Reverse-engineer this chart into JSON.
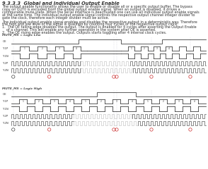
{
  "title": "9.3.3.3  Global and Individual Output Enable",
  "bg_color": "#ffffff",
  "signal_color": "#303030",
  "grid_color": "#c8c8d8",
  "text_color": "#303030",
  "section1_label": "MUTE_MS = Logic Low",
  "section2_label": "MUTE_MS = Logic High",
  "body_lines": [
    "The output enable functionality allows the user to enable or disable all or a specific output buffer. The bypass",
    "copy on OUT0 is excluded from the global output enable signal. When an output is disabled, it drives a",
    "configurable mute-state. When the serial interface is deactivated one can use all individual output enable signals",
    "at the same time. The individual output enable signal controls the respective output channel integer divider to",
    "gate the clock, therefore each integer divider must be active.",
    "",
    "The individual output enable signal enables and disables the respective output in a deterministic way. Therefore",
    "the high and low level of the signal is qualified by counting four cycles of the respective output clock.",
    "1.  The OE falling edge disables the output. The output is enabled for 4 cycles after asserting the Output Enable",
    "    of a channel. This will enable any further operation in the system after OE is asserted.",
    "2.  The OE rising edge enables the output. Outputs starts toggling after 4 internal clock cycles."
  ],
  "title_fontsize": 4.8,
  "body_fontsize": 3.5
}
